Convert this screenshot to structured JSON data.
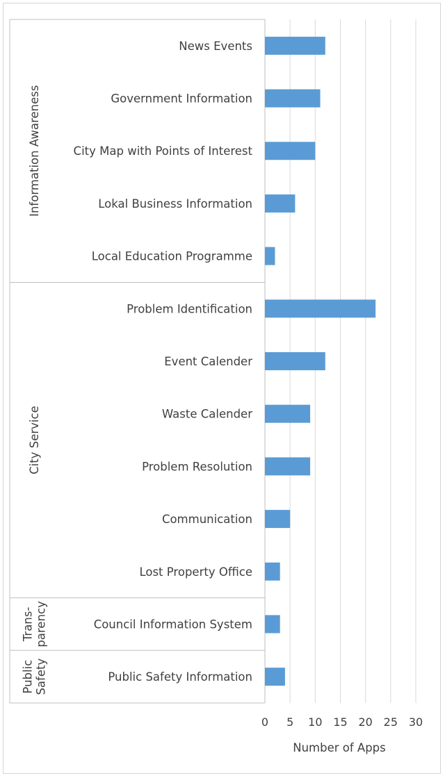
{
  "chart_data": {
    "type": "bar",
    "orientation": "horizontal",
    "categories": [
      "News Events",
      "Government Information",
      "City Map with Points of Interest",
      "Lokal Business Information",
      "Local Education Programme",
      "Problem Identification",
      "Event Calender",
      "Waste Calender",
      "Problem Resolution",
      "Communication",
      "Lost Property Office",
      "Council Information System",
      "Public Safety Information"
    ],
    "values": [
      12,
      11,
      10,
      6,
      2,
      22,
      12,
      9,
      9,
      5,
      3,
      3,
      4
    ],
    "groups": [
      {
        "label": "Information Awareness",
        "lines": [
          "Information Awareness"
        ],
        "count": 5
      },
      {
        "label": "City Service",
        "lines": [
          "City Service"
        ],
        "count": 6
      },
      {
        "label": "Trans-parency",
        "lines": [
          "Trans-",
          "parency"
        ],
        "count": 1
      },
      {
        "label": "Public Safety",
        "lines": [
          "Public",
          "Safety"
        ],
        "count": 1
      }
    ],
    "xticks": [
      "0",
      "5",
      "10",
      "15",
      "20",
      "25",
      "30"
    ],
    "xlim": [
      0,
      30
    ],
    "xlabel": "Number  of Apps",
    "grid": true,
    "bar_color": "#5b9bd5",
    "grid_color": "#d9d9d9",
    "legend": "none"
  }
}
